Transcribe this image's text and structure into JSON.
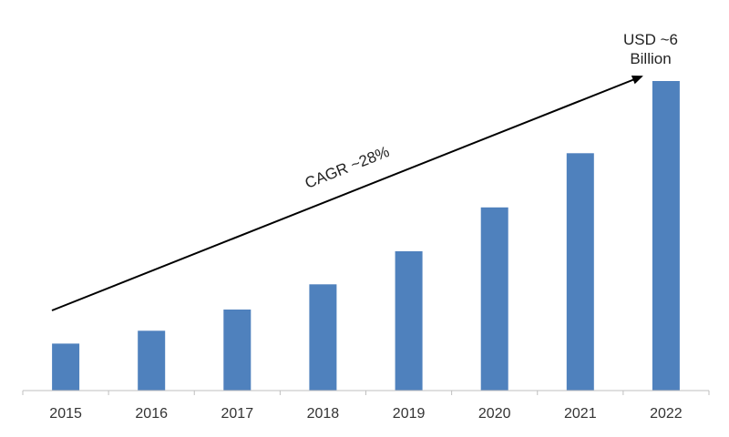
{
  "chart_data": {
    "type": "bar",
    "categories": [
      "2015",
      "2016",
      "2017",
      "2018",
      "2019",
      "2020",
      "2021",
      "2022"
    ],
    "values": [
      0.91,
      1.16,
      1.57,
      2.06,
      2.7,
      3.55,
      4.6,
      6.0
    ],
    "ylim": [
      0,
      6.2
    ],
    "grid": false,
    "legend": "none",
    "bar_color": "#4f81bd",
    "annotations": {
      "cagr": "CAGR ~28%",
      "end_value_line1": "USD ~6",
      "end_value_line2": "Billion"
    }
  }
}
